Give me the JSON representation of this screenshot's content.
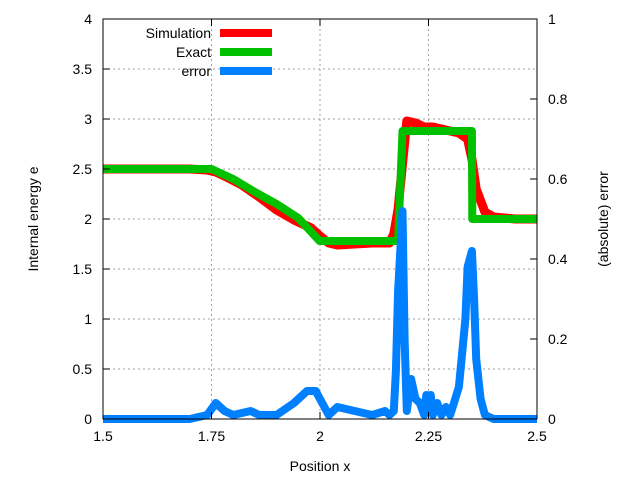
{
  "chart_data": {
    "type": "line",
    "xlabel": "Position x",
    "ylabel": "Internal energy e",
    "y2label": "(absolute) error",
    "xlim": [
      1.5,
      2.5
    ],
    "ylim": [
      0,
      4
    ],
    "y2lim": [
      0,
      1
    ],
    "grid": true,
    "legend_position": "top-left",
    "x_ticks": [
      "1.5",
      "1.75",
      "2",
      "2.25",
      "2.5"
    ],
    "y_ticks": [
      "0",
      "0.5",
      "1",
      "1.5",
      "2",
      "2.5",
      "3",
      "3.5",
      "4"
    ],
    "y2_ticks": [
      "0",
      "0.2",
      "0.4",
      "0.6",
      "0.8",
      "1"
    ],
    "series": [
      {
        "name": "Simulation",
        "color": "#ff0000",
        "axis": "left",
        "x": [
          1.5,
          1.6,
          1.7,
          1.74,
          1.76,
          1.78,
          1.82,
          1.86,
          1.9,
          1.94,
          1.98,
          2.0,
          2.02,
          2.04,
          2.08,
          2.12,
          2.16,
          2.17,
          2.18,
          2.19,
          2.2,
          2.22,
          2.24,
          2.26,
          2.28,
          2.3,
          2.32,
          2.34,
          2.35,
          2.36,
          2.38,
          2.4,
          2.45,
          2.5
        ],
        "values": [
          2.5,
          2.5,
          2.5,
          2.49,
          2.47,
          2.43,
          2.34,
          2.22,
          2.09,
          1.99,
          1.91,
          1.83,
          1.76,
          1.74,
          1.75,
          1.76,
          1.76,
          1.85,
          2.1,
          2.55,
          2.98,
          2.96,
          2.92,
          2.92,
          2.9,
          2.88,
          2.86,
          2.8,
          2.6,
          2.3,
          2.07,
          2.02,
          2.0,
          2.0
        ]
      },
      {
        "name": "Exact",
        "color": "#00c000",
        "axis": "left",
        "x": [
          1.5,
          1.75,
          1.8,
          1.85,
          1.9,
          1.95,
          1.999,
          2.18,
          2.19,
          2.35,
          2.351,
          2.5
        ],
        "values": [
          2.5,
          2.5,
          2.4,
          2.27,
          2.15,
          2.01,
          1.78,
          1.78,
          2.88,
          2.88,
          2.0,
          2.0
        ]
      },
      {
        "name": "error",
        "color": "#0080ff",
        "axis": "right",
        "x": [
          1.5,
          1.7,
          1.74,
          1.76,
          1.78,
          1.8,
          1.84,
          1.86,
          1.9,
          1.94,
          1.97,
          1.99,
          2.0,
          2.02,
          2.04,
          2.08,
          2.12,
          2.15,
          2.16,
          2.17,
          2.175,
          2.18,
          2.19,
          2.195,
          2.2,
          2.21,
          2.22,
          2.23,
          2.24,
          2.245,
          2.25,
          2.255,
          2.26,
          2.27,
          2.28,
          2.29,
          2.3,
          2.32,
          2.335,
          2.34,
          2.35,
          2.355,
          2.36,
          2.37,
          2.38,
          2.4,
          2.5
        ],
        "values": [
          0,
          0,
          0.01,
          0.04,
          0.02,
          0.01,
          0.02,
          0.01,
          0.01,
          0.04,
          0.07,
          0.07,
          0.05,
          0.01,
          0.03,
          0.02,
          0.01,
          0.02,
          0.01,
          0.02,
          0.12,
          0.32,
          0.52,
          0.2,
          0.02,
          0.1,
          0.05,
          0.04,
          0.01,
          0.06,
          0.02,
          0.06,
          0.01,
          0.04,
          0.01,
          0.03,
          0.01,
          0.08,
          0.25,
          0.38,
          0.42,
          0.3,
          0.15,
          0.05,
          0.01,
          0,
          0
        ]
      }
    ]
  }
}
